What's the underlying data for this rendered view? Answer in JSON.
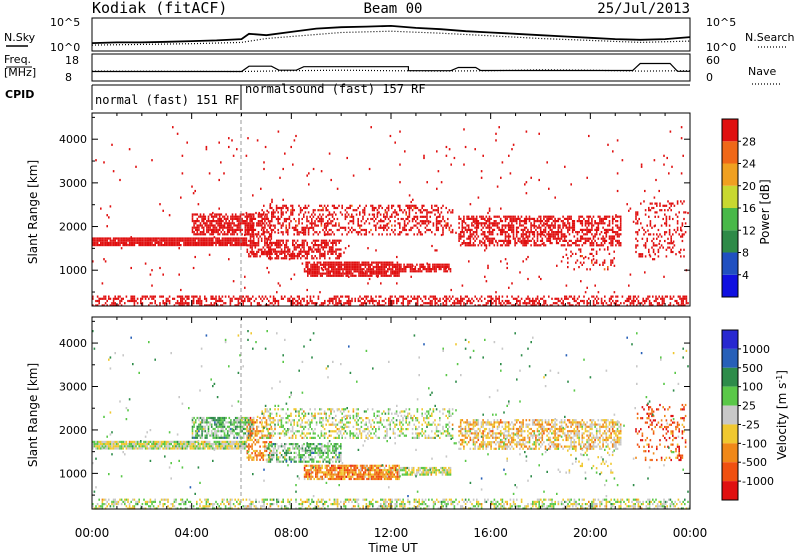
{
  "header": {
    "station": "Kodiak (fitACF)",
    "beam": "Beam 00",
    "date": "25/Jul/2013"
  },
  "strips": {
    "noise_left": "N.Sky",
    "noise_right": "N.Search",
    "noise_ticks": [
      "10^5",
      "10^0"
    ],
    "freq_left_top": "Freq.",
    "freq_left_bottom": "[MHz]",
    "freq_ticks": [
      "18",
      "8"
    ],
    "nave_right": "Nave",
    "nave_ticks": [
      "60",
      "0"
    ],
    "cpid_label": "CPID",
    "cpid_modes": [
      "normal (fast) 151 RF",
      "normalsound (fast) 157 RF"
    ]
  },
  "colors": {
    "power": [
      "#1010e0",
      "#2050c0",
      "#2e8a48",
      "#48b848",
      "#c8d830",
      "#f0a020",
      "#f06818",
      "#e01010"
    ],
    "velocity": [
      "#2828d0",
      "#2860b8",
      "#2e8c4a",
      "#5ac848",
      "#c8c8c8",
      "#f0c830",
      "#f08818",
      "#f05010",
      "#e01010"
    ]
  },
  "chart_data": [
    {
      "type": "line",
      "name": "noise",
      "series": [
        {
          "name": "N.Sky",
          "x": [
            0,
            1,
            2,
            3,
            4,
            5,
            6,
            6.3,
            7,
            8,
            9,
            10,
            11,
            12,
            13,
            14,
            15,
            16,
            17,
            18,
            19,
            20,
            21,
            22,
            23,
            24
          ],
          "values": [
            1.2,
            1.3,
            1.3,
            1.4,
            1.5,
            1.6,
            1.8,
            2.6,
            2.4,
            2.9,
            3.4,
            3.6,
            3.7,
            3.8,
            3.5,
            3.3,
            3.0,
            2.8,
            2.6,
            2.4,
            2.2,
            2.0,
            1.8,
            1.7,
            1.8,
            2.1
          ]
        },
        {
          "name": "N.Search",
          "x": [
            0,
            2,
            4,
            6,
            7,
            8,
            10,
            12,
            14,
            16,
            18,
            20,
            22,
            24
          ],
          "values": [
            0.9,
            1.0,
            1.1,
            1.3,
            1.9,
            2.2,
            2.8,
            3.0,
            2.7,
            2.3,
            1.9,
            1.6,
            1.3,
            1.5
          ]
        }
      ],
      "ylim": [
        0,
        5
      ],
      "yticks": [
        "10^5",
        "10^0"
      ]
    },
    {
      "type": "line",
      "name": "frequency-nave",
      "freq": {
        "x": [
          0,
          6,
          6.3,
          7.2,
          7.5,
          8.2,
          8.5,
          12.7,
          12.7,
          14.4,
          14.7,
          15.4,
          15.6,
          21.7,
          22,
          23.2,
          23.5,
          24
        ],
        "values": [
          11.5,
          11.5,
          13.5,
          13.5,
          12,
          12,
          13.3,
          13.3,
          11.8,
          11.8,
          13,
          13,
          11.9,
          11.9,
          14.5,
          14.5,
          11.6,
          11.6
        ]
      },
      "nave": {
        "x": [
          0,
          6,
          8,
          10,
          12,
          14,
          16,
          18,
          20,
          22,
          24
        ],
        "values": [
          22,
          21,
          23,
          24,
          23,
          22,
          23,
          25,
          24,
          22,
          23
        ]
      },
      "freq_ylim": [
        8,
        18
      ],
      "nave_ylim": [
        0,
        60
      ]
    },
    {
      "type": "table",
      "name": "cpid",
      "modes": [
        {
          "label": "normal (fast) 151 RF",
          "start": 0,
          "end": 6
        },
        {
          "label": "normalsound (fast) 157 RF",
          "start": 6,
          "end": 24
        }
      ]
    },
    {
      "type": "heatmap",
      "name": "power",
      "xlabel": "Time UT",
      "ylabel": "Slant Range [km]",
      "xlim": [
        0,
        24
      ],
      "ylim": [
        180,
        4600
      ],
      "xticks": [
        "00:00",
        "04:00",
        "08:00",
        "12:00",
        "16:00",
        "20:00",
        "00:00"
      ],
      "yticks": [
        1000,
        2000,
        3000,
        4000
      ],
      "colorbar": {
        "label": "Power [dB]",
        "ticks": [
          4,
          8,
          12,
          16,
          20,
          24,
          28
        ],
        "range": [
          0,
          32
        ]
      },
      "scatter_regions": [
        {
          "t0": 0,
          "t1": 6.2,
          "r0": 1580,
          "r1": 1750,
          "density": 0.95,
          "value": 24
        },
        {
          "t0": 4,
          "t1": 6.5,
          "r0": 1800,
          "r1": 2300,
          "density": 0.7,
          "value": 14
        },
        {
          "t0": 6.2,
          "t1": 7.2,
          "r0": 1300,
          "r1": 2300,
          "density": 0.5,
          "value": 16
        },
        {
          "t0": 7,
          "t1": 10,
          "r0": 1250,
          "r1": 1700,
          "density": 0.6,
          "value": 12
        },
        {
          "t0": 8.5,
          "t1": 12.3,
          "r0": 850,
          "r1": 1200,
          "density": 0.85,
          "value": 20
        },
        {
          "t0": 12.3,
          "t1": 14.4,
          "r0": 950,
          "r1": 1150,
          "density": 0.8,
          "value": 24
        },
        {
          "t0": 6.8,
          "t1": 14.5,
          "r0": 1800,
          "r1": 2500,
          "density": 0.35,
          "value": 8
        },
        {
          "t0": 14.7,
          "t1": 21.2,
          "r0": 1550,
          "r1": 2250,
          "density": 0.55,
          "value": 9
        },
        {
          "t0": 19,
          "t1": 21,
          "r0": 1000,
          "r1": 1550,
          "density": 0.15,
          "value": 8
        },
        {
          "t0": 21.8,
          "t1": 23.8,
          "r0": 1300,
          "r1": 2600,
          "density": 0.2,
          "value": 10
        },
        {
          "t0": 0,
          "t1": 24,
          "r0": 200,
          "r1": 420,
          "density": 0.45,
          "value": 12
        },
        {
          "t0": 0,
          "t1": 24,
          "r0": 500,
          "r1": 4300,
          "density": 0.012,
          "value": 14
        }
      ]
    },
    {
      "type": "heatmap",
      "name": "velocity",
      "xlabel": "Time UT",
      "ylabel": "Slant Range [km]",
      "xlim": [
        0,
        24
      ],
      "ylim": [
        180,
        4600
      ],
      "xticks": [
        "00:00",
        "04:00",
        "08:00",
        "12:00",
        "16:00",
        "20:00",
        "00:00"
      ],
      "yticks": [
        1000,
        2000,
        3000,
        4000
      ],
      "colorbar": {
        "label": "Velocity [m s",
        "label_sup": "-1",
        "label_end": "]",
        "ticks": [
          "1000",
          "500",
          "100",
          "25",
          "-25",
          "-100",
          "-500",
          "-1000"
        ]
      },
      "scatter_regions": [
        {
          "t0": 0,
          "t1": 6.2,
          "r0": 1580,
          "r1": 1750,
          "density": 0.95,
          "value": 4
        },
        {
          "t0": 4,
          "t1": 6.5,
          "r0": 1800,
          "r1": 2300,
          "density": 0.7,
          "value": 3
        },
        {
          "t0": 6.2,
          "t1": 7.2,
          "r0": 1300,
          "r1": 2300,
          "density": 0.5,
          "value": 6
        },
        {
          "t0": 7,
          "t1": 10,
          "r0": 1250,
          "r1": 1700,
          "density": 0.6,
          "value": 3
        },
        {
          "t0": 8.5,
          "t1": 12.3,
          "r0": 850,
          "r1": 1200,
          "density": 0.85,
          "value": 6
        },
        {
          "t0": 12.3,
          "t1": 14.4,
          "r0": 950,
          "r1": 1150,
          "density": 0.8,
          "value": 4
        },
        {
          "t0": 6.8,
          "t1": 14.5,
          "r0": 1800,
          "r1": 2500,
          "density": 0.35,
          "value": 4
        },
        {
          "t0": 14.7,
          "t1": 21.2,
          "r0": 1550,
          "r1": 2250,
          "density": 0.55,
          "value": 5
        },
        {
          "t0": 19,
          "t1": 21,
          "r0": 1000,
          "r1": 1550,
          "density": 0.15,
          "value": 4
        },
        {
          "t0": 21.8,
          "t1": 23.8,
          "r0": 1300,
          "r1": 2600,
          "density": 0.2,
          "value": 7
        },
        {
          "t0": 0,
          "t1": 24,
          "r0": 200,
          "r1": 420,
          "density": 0.45,
          "value": 4
        },
        {
          "t0": 0,
          "t1": 24,
          "r0": 500,
          "r1": 4300,
          "density": 0.012,
          "value": 3
        }
      ]
    }
  ]
}
